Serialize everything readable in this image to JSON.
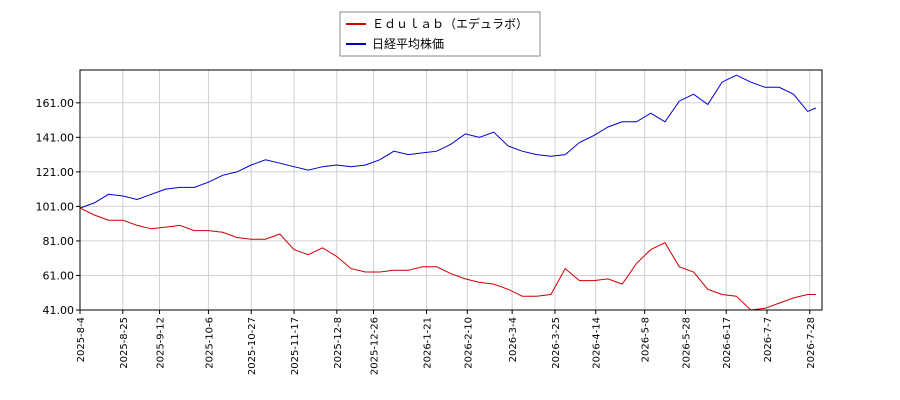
{
  "chart_data": {
    "type": "line",
    "x": [
      "2025-8-4",
      "2025-8-11",
      "2025-8-18",
      "2025-8-25",
      "2025-9-1",
      "2025-9-8",
      "2025-9-15",
      "2025-9-22",
      "2025-9-29",
      "2025-10-6",
      "2025-10-13",
      "2025-10-20",
      "2025-10-27",
      "2025-11-3",
      "2025-11-10",
      "2025-11-17",
      "2025-11-24",
      "2025-12-1",
      "2025-12-8",
      "2025-12-15",
      "2025-12-22",
      "2025-12-29",
      "2026-1-5",
      "2026-1-12",
      "2026-1-19",
      "2026-1-26",
      "2026-2-2",
      "2026-2-9",
      "2026-2-16",
      "2026-2-23",
      "2026-3-2",
      "2026-3-9",
      "2026-3-16",
      "2026-3-23",
      "2026-3-30",
      "2026-4-6",
      "2026-4-13",
      "2026-4-20",
      "2026-4-27",
      "2026-5-4",
      "2026-5-11",
      "2026-5-18",
      "2026-5-25",
      "2026-6-1",
      "2026-6-8",
      "2026-6-15",
      "2026-6-22",
      "2026-6-29",
      "2026-7-6",
      "2026-7-13",
      "2026-7-20",
      "2026-7-27",
      "2026-7-31"
    ],
    "series": [
      {
        "name": "Ｅｄｕｌａｂ（エデュラボ）",
        "color": "#cc0000",
        "values": [
          100,
          96,
          93,
          93,
          90,
          88,
          89,
          90,
          87,
          87,
          86,
          83,
          82,
          82,
          85,
          76,
          73,
          77,
          72,
          65,
          63,
          63,
          64,
          64,
          66,
          66,
          62,
          59,
          57,
          56,
          53,
          49,
          49,
          50,
          65,
          58,
          58,
          59,
          56,
          68,
          76,
          80,
          66,
          63,
          53,
          50,
          49,
          41,
          42,
          45,
          48,
          50,
          50
        ]
      },
      {
        "name": "日経平均株価",
        "color": "#0000cc",
        "values": [
          100,
          103,
          108,
          107,
          105,
          108,
          111,
          112,
          112,
          115,
          119,
          121,
          125,
          128,
          126,
          124,
          122,
          124,
          125,
          124,
          125,
          128,
          133,
          131,
          132,
          133,
          137,
          143,
          141,
          144,
          136,
          133,
          131,
          130,
          131,
          138,
          142,
          147,
          150,
          150,
          155,
          150,
          162,
          166,
          160,
          173,
          177,
          173,
          170,
          170,
          166,
          156,
          158
        ]
      }
    ],
    "xlim": [
      "2025-8-4",
      "2026-8-3"
    ],
    "xticks": [
      "2025-8-4",
      "2025-8-25",
      "2025-9-12",
      "2025-10-6",
      "2025-10-27",
      "2025-11-17",
      "2025-12-8",
      "2025-12-26",
      "2026-1-21",
      "2026-2-10",
      "2026-3-4",
      "2026-3-25",
      "2026-4-14",
      "2026-5-8",
      "2026-5-28",
      "2026-6-17",
      "2026-7-7",
      "2026-7-28"
    ],
    "ylim": [
      41,
      180
    ],
    "yticks": [
      {
        "value": 41,
        "label": "41.00"
      },
      {
        "value": 61,
        "label": "61.00"
      },
      {
        "value": 81,
        "label": "81.00"
      },
      {
        "value": 101,
        "label": "101.00"
      },
      {
        "value": 121,
        "label": "121.00"
      },
      {
        "value": 141,
        "label": "141.00"
      },
      {
        "value": 161,
        "label": "161.00"
      }
    ],
    "grid": true,
    "legend": "top"
  }
}
